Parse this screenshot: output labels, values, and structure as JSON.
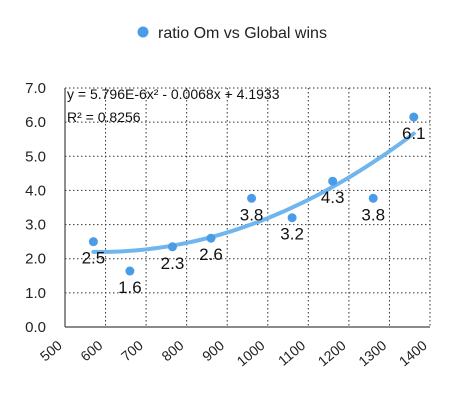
{
  "chart_data": {
    "type": "scatter",
    "legend": {
      "label": "ratio Om vs Global wins",
      "position": "top"
    },
    "series": [
      {
        "name": "ratio Om vs Global wins",
        "color": "#4a9ce8",
        "points": [
          {
            "x": 570,
            "y": 2.5,
            "label": "2.5"
          },
          {
            "x": 660,
            "y": 1.64,
            "label": "1.6"
          },
          {
            "x": 765,
            "y": 2.35,
            "label": "2.3"
          },
          {
            "x": 860,
            "y": 2.6,
            "label": "2.6"
          },
          {
            "x": 960,
            "y": 3.77,
            "label": "3.8"
          },
          {
            "x": 1060,
            "y": 3.2,
            "label": "3.2"
          },
          {
            "x": 1160,
            "y": 4.27,
            "label": "4.3"
          },
          {
            "x": 1260,
            "y": 3.77,
            "label": "3.8"
          },
          {
            "x": 1360,
            "y": 6.15,
            "label": "6.1"
          }
        ]
      }
    ],
    "trendline": {
      "type": "polynomial",
      "coefficients": {
        "a": 5.796e-06,
        "b": -0.0068,
        "c": 4.1933
      },
      "x_range": [
        570,
        1360
      ],
      "color": "#6fb6ee",
      "equation": "y = 5.796E-6x² - 0.0068x + 4.1933",
      "r_squared": "R² = 0.8256"
    },
    "x_axis": {
      "range": [
        500,
        1400
      ],
      "ticks": [
        500,
        600,
        700,
        800,
        900,
        1000,
        1100,
        1200,
        1300,
        1400
      ],
      "tick_labels": [
        "500",
        "600",
        "700",
        "800",
        "900",
        "1000",
        "1100",
        "1200",
        "1300",
        "1400"
      ]
    },
    "y_axis": {
      "range": [
        0,
        7
      ],
      "ticks": [
        0,
        1,
        2,
        3,
        4,
        5,
        6,
        7
      ],
      "tick_labels": [
        "0.0",
        "1.0",
        "2.0",
        "3.0",
        "4.0",
        "5.0",
        "6.0",
        "7.0"
      ]
    },
    "grid": {
      "horizontal": true,
      "vertical": true,
      "style": "dotted"
    }
  }
}
